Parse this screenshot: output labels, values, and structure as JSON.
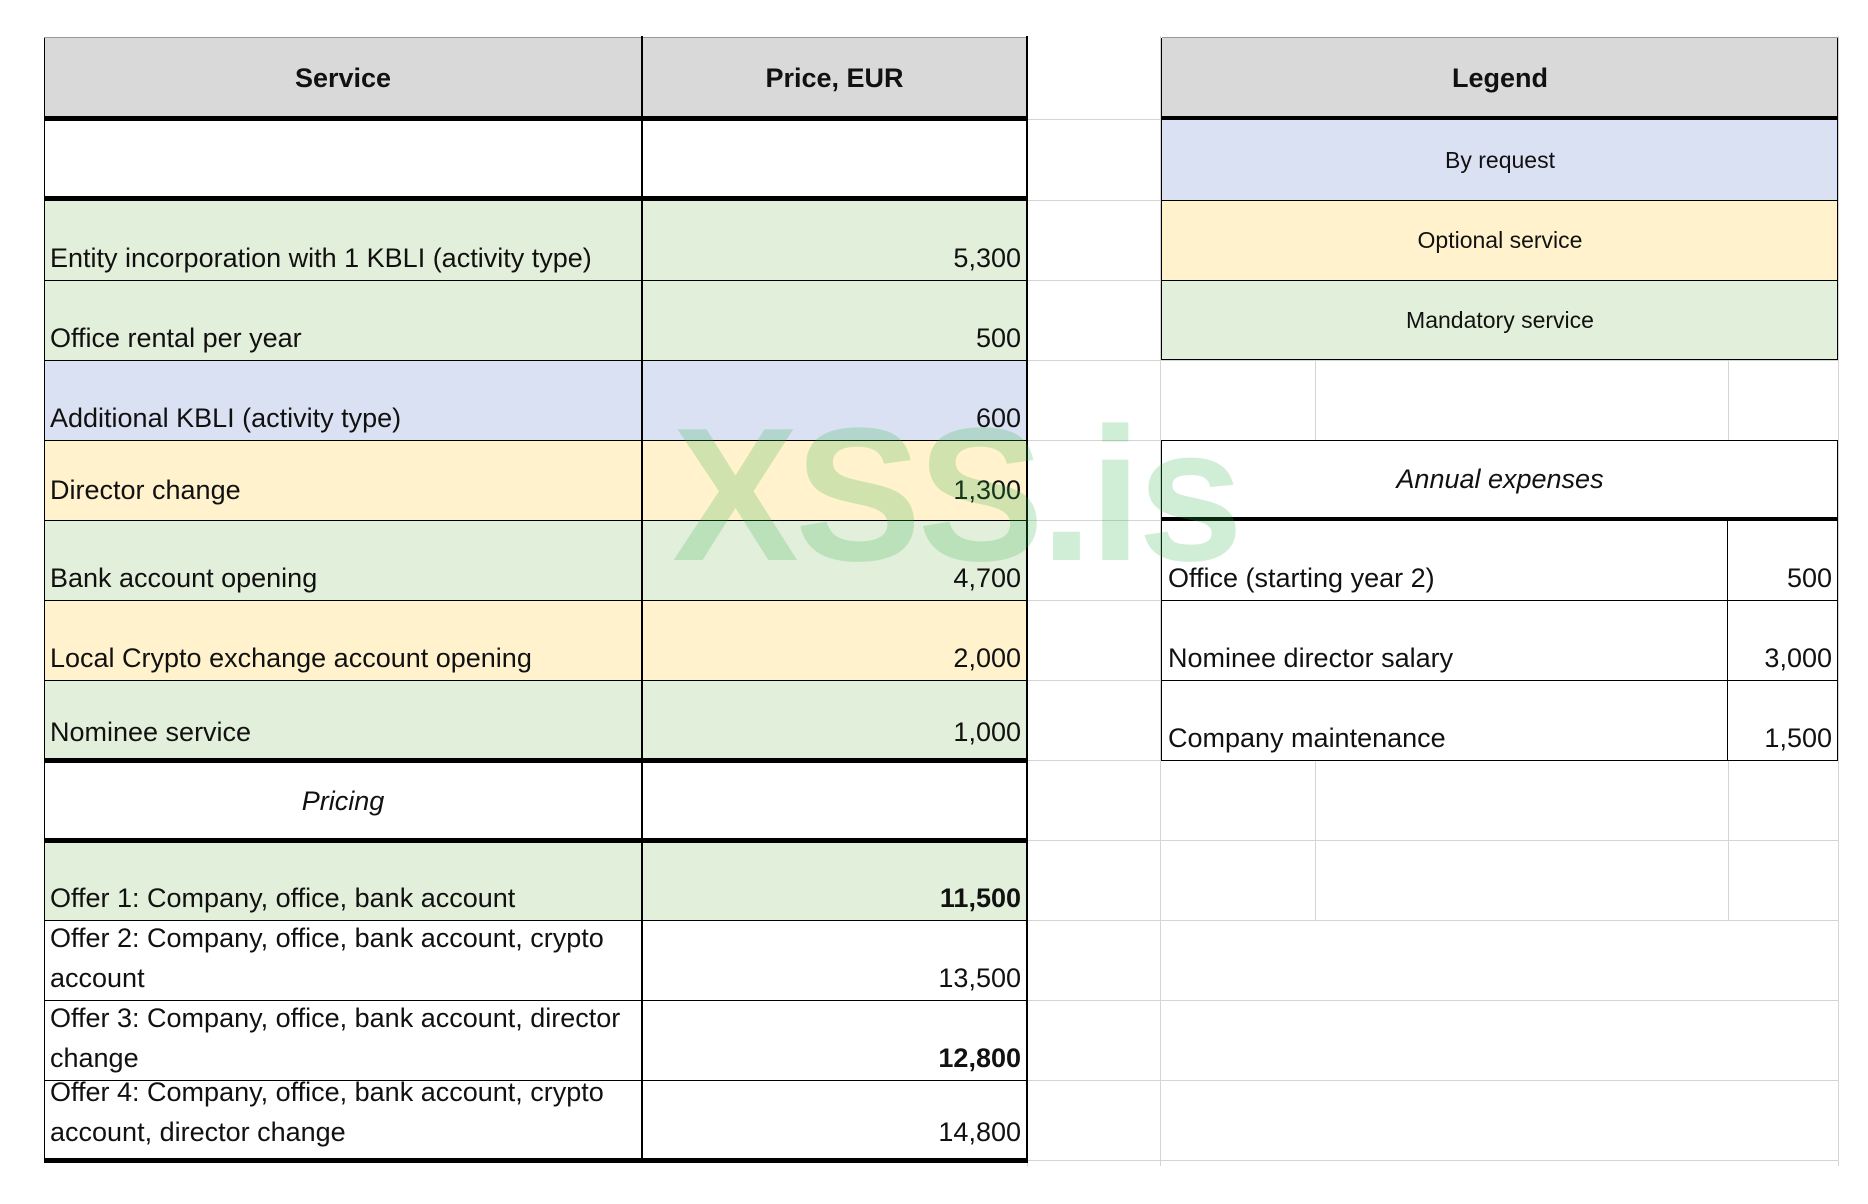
{
  "services_table": {
    "headers": {
      "service": "Service",
      "price": "Price, EUR"
    },
    "rows": [
      {
        "service": "Entity incorporation with 1 KBLI (activity type)",
        "price": "5,300"
      },
      {
        "service": "Office rental per year",
        "price": "500"
      },
      {
        "service": "Additional KBLI (activity type)",
        "price": "600"
      },
      {
        "service": "Director change",
        "price": "1,300"
      },
      {
        "service": "Bank account opening",
        "price": "4,700"
      },
      {
        "service": "Local Crypto exchange account opening",
        "price": "2,000"
      },
      {
        "service": "Nominee service",
        "price": "1,000"
      }
    ],
    "pricing_label": "Pricing",
    "offers": [
      {
        "label": "Offer 1: Company, office, bank account",
        "price": "11,500"
      },
      {
        "label": "Offer 2: Company, office, bank account, crypto account",
        "price": "13,500"
      },
      {
        "label": "Offer 3: Company, office, bank account, director change",
        "price": "12,800"
      },
      {
        "label": "Offer 4: Company, office, bank account, crypto account, director change",
        "price": "14,800"
      }
    ]
  },
  "legend": {
    "title": "Legend",
    "items": [
      {
        "label": "By request",
        "color": "#dae1f2"
      },
      {
        "label": "Optional service",
        "color": "#fff2cc"
      },
      {
        "label": "Mandatory service",
        "color": "#e2efda"
      }
    ]
  },
  "annual_expenses": {
    "title": "Annual expenses",
    "rows": [
      {
        "label": "Office (starting year 2)",
        "value": "500"
      },
      {
        "label": "Nominee director salary",
        "value": "3,000"
      },
      {
        "label": "Company maintenance",
        "value": "1,500"
      }
    ]
  },
  "watermark": "XSS.is",
  "colors": {
    "header": "#d9d9d9",
    "mandatory": "#e2efda",
    "optional": "#fff2cc",
    "by_request": "#dae1f2"
  }
}
